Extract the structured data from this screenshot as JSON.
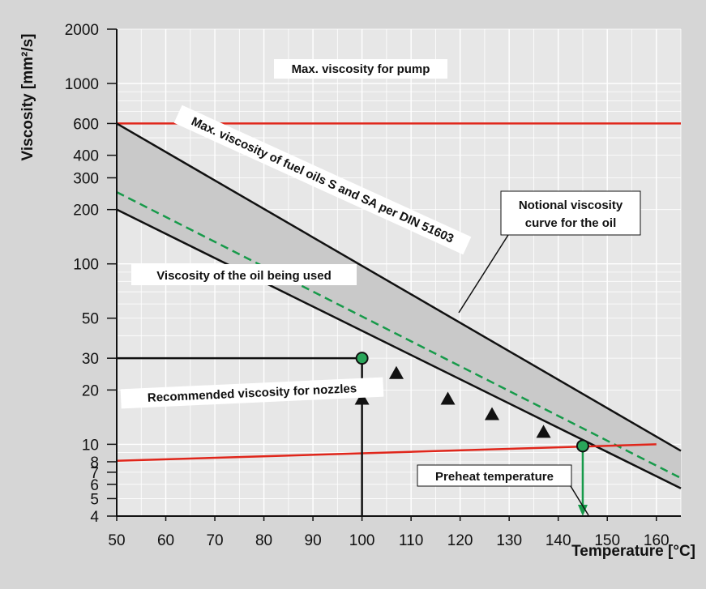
{
  "chart_data": {
    "type": "line",
    "xlabel": "Temperature [°C]",
    "ylabel": "Viscosity [mm²/s]",
    "xlim": [
      50,
      165
    ],
    "ylim": [
      4,
      2000
    ],
    "y_scale": "log",
    "grid": true,
    "x_ticks": [
      "50",
      "60",
      "70",
      "80",
      "90",
      "100",
      "110",
      "120",
      "130",
      "140",
      "150",
      "160"
    ],
    "y_ticks": [
      {
        "value": 2000,
        "label": "2000"
      },
      {
        "value": 1000,
        "label": "1000"
      },
      {
        "value": 600,
        "label": "600"
      },
      {
        "value": 400,
        "label": "400"
      },
      {
        "value": 300,
        "label": "300"
      },
      {
        "value": 200,
        "label": "200"
      },
      {
        "value": 100,
        "label": "100"
      },
      {
        "value": 50,
        "label": "50"
      },
      {
        "value": 30,
        "label": "30"
      },
      {
        "value": 20,
        "label": "20"
      },
      {
        "value": 10,
        "label": "10"
      },
      {
        "value": 8,
        "label": "8"
      },
      {
        "value": 7,
        "label": "7"
      },
      {
        "value": 6,
        "label": "6"
      },
      {
        "value": 5,
        "label": "5"
      },
      {
        "value": 4,
        "label": "4"
      }
    ],
    "series": [
      {
        "name": "Max. viscosity for pump",
        "color": "#e0261b",
        "style": "solid",
        "x": [
          50,
          165
        ],
        "y": [
          600,
          600
        ]
      },
      {
        "name": "Max. viscosity of fuel oils S and SA per DIN 51603",
        "color": "#111111",
        "style": "solid",
        "x": [
          50,
          165
        ],
        "y": [
          600,
          9.2
        ]
      },
      {
        "color": "#111111",
        "style": "solid",
        "x": [
          50,
          165
        ],
        "y": [
          200,
          5.7
        ]
      },
      {
        "name": "Notional viscosity curve for the oil",
        "color": "#179a4a",
        "style": "dashed",
        "x": [
          50,
          165
        ],
        "y": [
          250,
          6.5
        ]
      },
      {
        "name": "Recommended viscosity for nozzles",
        "color": "#e0261b",
        "style": "solid",
        "x": [
          50,
          160
        ],
        "y": [
          8.1,
          10
        ]
      }
    ],
    "markers": [
      {
        "x": 107,
        "y": 25
      },
      {
        "x": 117.5,
        "y": 18
      },
      {
        "x": 126.5,
        "y": 14.8
      },
      {
        "x": 137,
        "y": 11.8
      }
    ],
    "points": [
      {
        "x": 100,
        "y": 30
      },
      {
        "x": 145,
        "y": 9.8
      }
    ],
    "annotations": {
      "pump": "Max. viscosity for pump",
      "din": "Max. viscosity of fuel oils S and SA per DIN 51603",
      "notional_line1": "Notional viscosity",
      "notional_line2": "curve for the oil",
      "oil_used": "Viscosity of the oil being used",
      "nozzles": "Recommended viscosity for nozzles",
      "preheat": "Preheat temperature"
    }
  }
}
